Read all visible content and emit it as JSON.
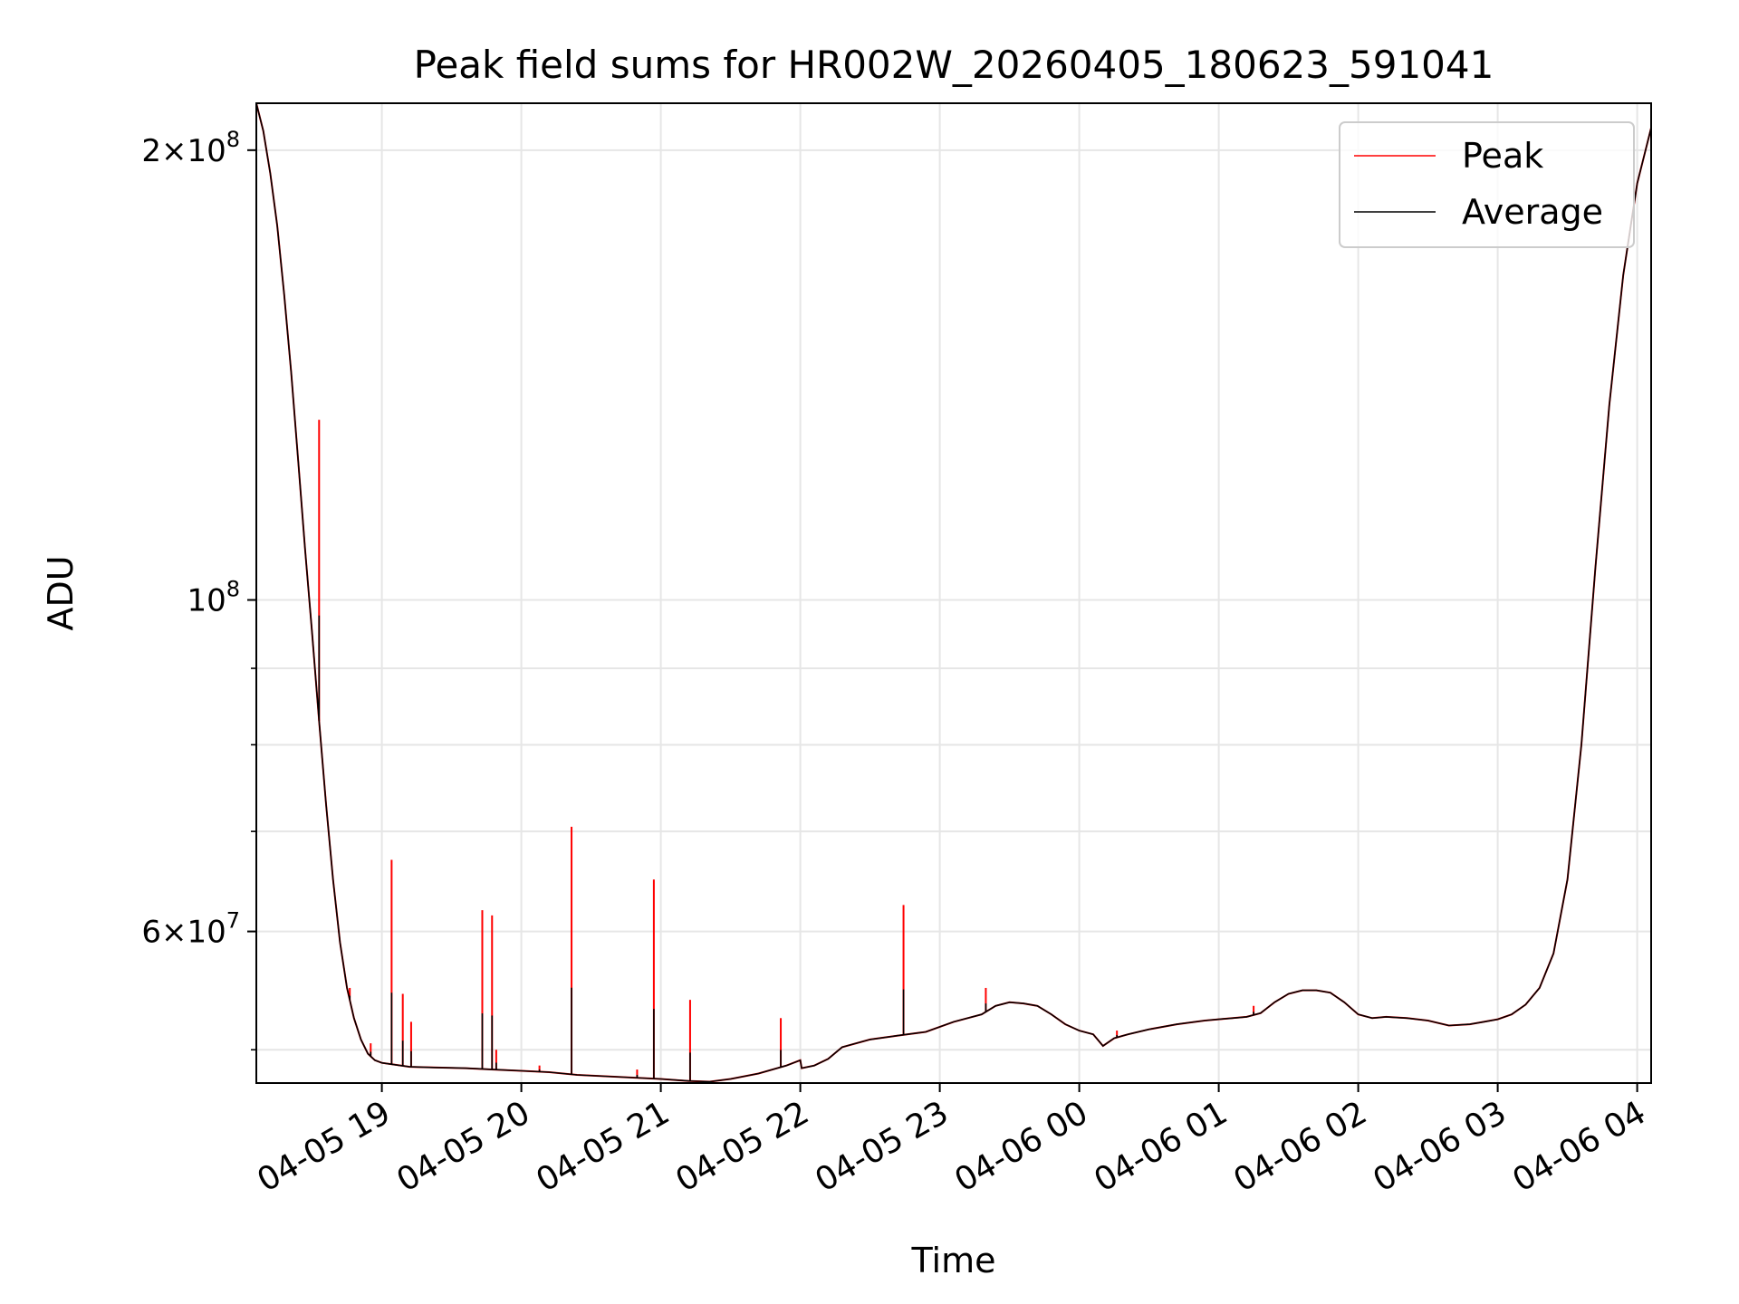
{
  "chart_data": {
    "type": "line",
    "title": "Peak field sums for HR002W_20260405_180623_591041",
    "xlabel": "Time",
    "ylabel": "ADU",
    "y_scale": "log",
    "grid": true,
    "legend_position": "top-right",
    "x_unit": "hours since 2026-04-05 18:00",
    "xlim": [
      0.1,
      10.1
    ],
    "ylim": [
      47500000,
      215000000
    ],
    "x_ticks": [
      {
        "value": 1,
        "label": "04-05 19"
      },
      {
        "value": 2,
        "label": "04-05 20"
      },
      {
        "value": 3,
        "label": "04-05 21"
      },
      {
        "value": 4,
        "label": "04-05 22"
      },
      {
        "value": 5,
        "label": "04-05 23"
      },
      {
        "value": 6,
        "label": "04-06 00"
      },
      {
        "value": 7,
        "label": "04-06 01"
      },
      {
        "value": 8,
        "label": "04-06 02"
      },
      {
        "value": 9,
        "label": "04-06 03"
      },
      {
        "value": 10,
        "label": "04-06 04"
      }
    ],
    "y_ticks": [
      {
        "value": 60000000,
        "mantissa": "6",
        "exponent": "7"
      },
      {
        "value": 100000000,
        "mantissa": "",
        "exponent": "8"
      },
      {
        "value": 200000000,
        "mantissa": "2",
        "exponent": "8"
      }
    ],
    "y_minor_ticks": [
      50000000,
      70000000,
      80000000,
      90000000
    ],
    "series": [
      {
        "name": "Average",
        "color": "#000000",
        "points": [
          [
            0.1,
            215000000
          ],
          [
            0.15,
            206000000
          ],
          [
            0.2,
            193000000
          ],
          [
            0.25,
            178000000
          ],
          [
            0.3,
            160000000
          ],
          [
            0.35,
            142000000
          ],
          [
            0.4,
            124000000
          ],
          [
            0.45,
            108000000
          ],
          [
            0.5,
            95000000
          ],
          [
            0.55,
            83000000
          ],
          [
            0.6,
            73000000
          ],
          [
            0.65,
            65000000
          ],
          [
            0.7,
            59000000
          ],
          [
            0.75,
            55000000
          ],
          [
            0.8,
            52500000
          ],
          [
            0.85,
            50800000
          ],
          [
            0.9,
            49700000
          ],
          [
            0.95,
            49200000
          ],
          [
            1.0,
            49000000
          ],
          [
            1.1,
            48850000
          ],
          [
            1.2,
            48700000
          ],
          [
            1.4,
            48650000
          ],
          [
            1.6,
            48600000
          ],
          [
            1.8,
            48500000
          ],
          [
            2.0,
            48400000
          ],
          [
            2.2,
            48300000
          ],
          [
            2.4,
            48100000
          ],
          [
            2.6,
            48000000
          ],
          [
            2.8,
            47900000
          ],
          [
            3.0,
            47800000
          ],
          [
            3.2,
            47650000
          ],
          [
            3.35,
            47600000
          ],
          [
            3.5,
            47800000
          ],
          [
            3.7,
            48200000
          ],
          [
            3.9,
            48800000
          ],
          [
            4.0,
            49200000
          ],
          [
            4.01,
            48600000
          ],
          [
            4.1,
            48800000
          ],
          [
            4.2,
            49300000
          ],
          [
            4.3,
            50200000
          ],
          [
            4.5,
            50800000
          ],
          [
            4.7,
            51100000
          ],
          [
            4.9,
            51400000
          ],
          [
            5.1,
            52200000
          ],
          [
            5.3,
            52800000
          ],
          [
            5.4,
            53500000
          ],
          [
            5.5,
            53800000
          ],
          [
            5.6,
            53700000
          ],
          [
            5.7,
            53500000
          ],
          [
            5.8,
            52800000
          ],
          [
            5.9,
            52000000
          ],
          [
            6.0,
            51500000
          ],
          [
            6.1,
            51200000
          ],
          [
            6.17,
            50300000
          ],
          [
            6.25,
            50900000
          ],
          [
            6.35,
            51200000
          ],
          [
            6.5,
            51600000
          ],
          [
            6.7,
            52000000
          ],
          [
            6.9,
            52300000
          ],
          [
            7.0,
            52400000
          ],
          [
            7.1,
            52500000
          ],
          [
            7.2,
            52600000
          ],
          [
            7.3,
            52900000
          ],
          [
            7.4,
            53800000
          ],
          [
            7.5,
            54500000
          ],
          [
            7.6,
            54800000
          ],
          [
            7.7,
            54800000
          ],
          [
            7.8,
            54600000
          ],
          [
            7.9,
            53800000
          ],
          [
            8.0,
            52800000
          ],
          [
            8.1,
            52500000
          ],
          [
            8.2,
            52600000
          ],
          [
            8.35,
            52500000
          ],
          [
            8.5,
            52300000
          ],
          [
            8.65,
            51900000
          ],
          [
            8.8,
            52000000
          ],
          [
            8.9,
            52200000
          ],
          [
            9.0,
            52400000
          ],
          [
            9.1,
            52800000
          ],
          [
            9.2,
            53600000
          ],
          [
            9.3,
            55000000
          ],
          [
            9.4,
            58000000
          ],
          [
            9.5,
            65000000
          ],
          [
            9.6,
            80000000
          ],
          [
            9.7,
            105000000
          ],
          [
            9.8,
            135000000
          ],
          [
            9.9,
            165000000
          ],
          [
            10.0,
            190000000
          ],
          [
            10.1,
            207000000
          ]
        ]
      },
      {
        "name": "Peak",
        "color": "#ff0000",
        "spikes": [
          [
            0.55,
            132000000
          ],
          [
            0.77,
            55000000
          ],
          [
            0.92,
            50500000
          ],
          [
            1.07,
            67000000
          ],
          [
            1.15,
            54500000
          ],
          [
            1.21,
            52200000
          ],
          [
            1.72,
            62000000
          ],
          [
            1.79,
            61500000
          ],
          [
            1.82,
            50000000
          ],
          [
            2.13,
            48800000
          ],
          [
            2.36,
            70500000
          ],
          [
            2.83,
            48500000
          ],
          [
            2.95,
            65000000
          ],
          [
            3.21,
            54000000
          ],
          [
            3.86,
            52500000
          ],
          [
            4.74,
            62500000
          ],
          [
            5.33,
            55000000
          ],
          [
            6.27,
            51500000
          ],
          [
            7.25,
            53500000
          ]
        ]
      }
    ],
    "legend": [
      {
        "name": "Peak",
        "color": "#ff0000"
      },
      {
        "name": "Average",
        "color": "#000000"
      }
    ]
  }
}
